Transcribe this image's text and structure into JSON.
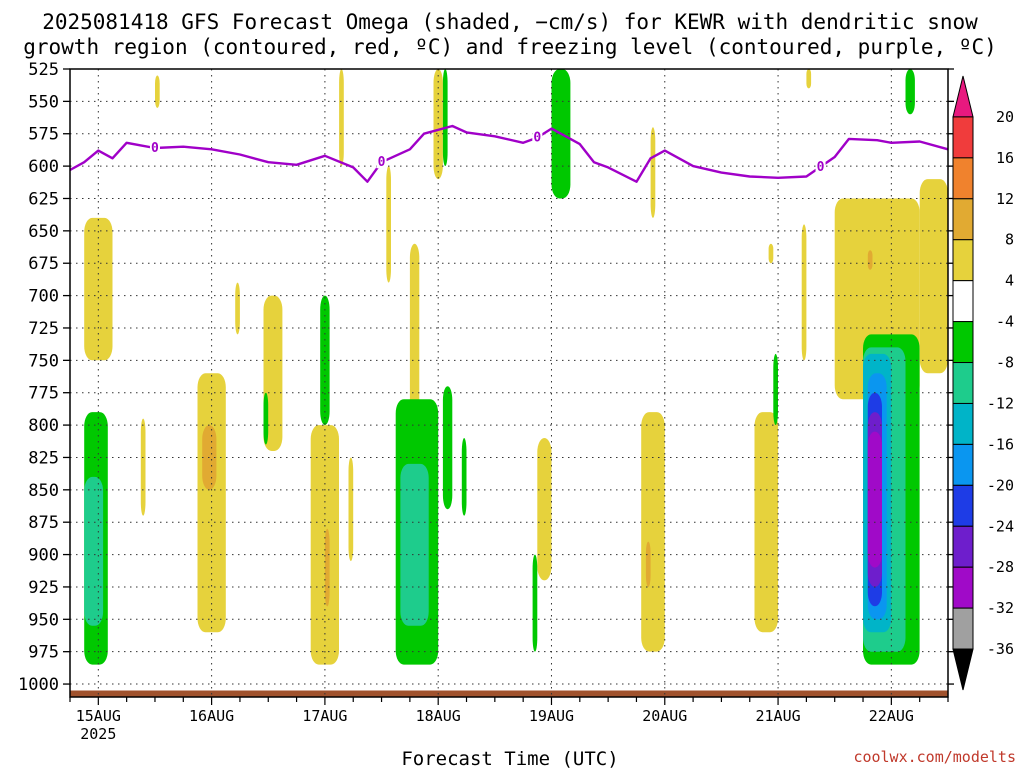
{
  "chart_data": {
    "type": "heatmap",
    "title_line1": "2025081418 GFS Forecast Omega (shaded, −cm/s) for KEWR with dendritic snow",
    "title_line2": "growth region (contoured, red, ºC) and freezing level (contoured, purple, ºC)",
    "xlabel": "Forecast Time (UTC)",
    "credit": "coolwx.com/modelts",
    "y_axis": {
      "variable": "pressure (hPa)",
      "scale": "inverted",
      "range": [
        525,
        1010
      ],
      "ticks": [
        525,
        550,
        575,
        600,
        625,
        650,
        675,
        700,
        725,
        750,
        775,
        800,
        825,
        850,
        875,
        900,
        925,
        950,
        975,
        1000
      ]
    },
    "x_axis": {
      "range": [
        "2025-08-14T18:00Z",
        "2025-08-22T12:00Z"
      ],
      "ticks": [
        {
          "label": "15AUG",
          "sub": "2025",
          "time": "2025-08-15T00:00Z"
        },
        {
          "label": "16AUG",
          "sub": "",
          "time": "2025-08-16T00:00Z"
        },
        {
          "label": "17AUG",
          "sub": "",
          "time": "2025-08-17T00:00Z"
        },
        {
          "label": "18AUG",
          "sub": "",
          "time": "2025-08-18T00:00Z"
        },
        {
          "label": "19AUG",
          "sub": "",
          "time": "2025-08-19T00:00Z"
        },
        {
          "label": "20AUG",
          "sub": "",
          "time": "2025-08-20T00:00Z"
        },
        {
          "label": "21AUG",
          "sub": "",
          "time": "2025-08-21T00:00Z"
        },
        {
          "label": "22AUG",
          "sub": "",
          "time": "2025-08-22T00:00Z"
        }
      ]
    },
    "grid": "dotted",
    "colorbar": {
      "position": "right",
      "labels": [
        20,
        16,
        12,
        8,
        4,
        -4,
        -8,
        -12,
        -16,
        -20,
        -24,
        -28,
        -32,
        -36
      ],
      "bands": [
        {
          "from": 24,
          "to": 20,
          "color": "#e8197f"
        },
        {
          "from": 20,
          "to": 16,
          "color": "#f03c3c"
        },
        {
          "from": 16,
          "to": 12,
          "color": "#f0822d"
        },
        {
          "from": 12,
          "to": 8,
          "color": "#e1aa32"
        },
        {
          "from": 8,
          "to": 4,
          "color": "#e6d23c"
        },
        {
          "from": 4,
          "to": -4,
          "color": "#ffffff"
        },
        {
          "from": -4,
          "to": -8,
          "color": "#00c800"
        },
        {
          "from": -8,
          "to": -12,
          "color": "#1ecc8c"
        },
        {
          "from": -12,
          "to": -16,
          "color": "#00b4c8"
        },
        {
          "from": -16,
          "to": -20,
          "color": "#0a96f0"
        },
        {
          "from": -20,
          "to": -24,
          "color": "#1e3ce6"
        },
        {
          "from": -24,
          "to": -28,
          "color": "#6e1ecc"
        },
        {
          "from": -28,
          "to": -32,
          "color": "#a00ac8"
        },
        {
          "from": -32,
          "to": -36,
          "color": "#a0a0a0"
        },
        {
          "from": -36,
          "to": -40,
          "color": "#000000"
        }
      ]
    },
    "freezing_level": {
      "color": "#a000c8",
      "contour_label": "0",
      "label_times": [
        "2025-08-15T12:00Z",
        "2025-08-17T12:00Z",
        "2025-08-18T21:00Z",
        "2025-08-21T09:00Z"
      ],
      "points": [
        [
          "2025-08-14T18:00Z",
          603
        ],
        [
          "2025-08-14T21:00Z",
          597
        ],
        [
          "2025-08-15T00:00Z",
          588
        ],
        [
          "2025-08-15T03:00Z",
          594
        ],
        [
          "2025-08-15T06:00Z",
          582
        ],
        [
          "2025-08-15T09:00Z",
          584
        ],
        [
          "2025-08-15T12:00Z",
          586
        ],
        [
          "2025-08-15T18:00Z",
          585
        ],
        [
          "2025-08-16T00:00Z",
          587
        ],
        [
          "2025-08-16T06:00Z",
          591
        ],
        [
          "2025-08-16T12:00Z",
          597
        ],
        [
          "2025-08-16T18:00Z",
          599
        ],
        [
          "2025-08-17T00:00Z",
          592
        ],
        [
          "2025-08-17T06:00Z",
          601
        ],
        [
          "2025-08-17T09:00Z",
          612
        ],
        [
          "2025-08-17T12:00Z",
          597
        ],
        [
          "2025-08-17T18:00Z",
          587
        ],
        [
          "2025-08-17T21:00Z",
          575
        ],
        [
          "2025-08-18T03:00Z",
          569
        ],
        [
          "2025-08-18T06:00Z",
          574
        ],
        [
          "2025-08-18T12:00Z",
          577
        ],
        [
          "2025-08-18T18:00Z",
          582
        ],
        [
          "2025-08-18T21:00Z",
          578
        ],
        [
          "2025-08-19T00:00Z",
          571
        ],
        [
          "2025-08-19T06:00Z",
          583
        ],
        [
          "2025-08-19T09:00Z",
          597
        ],
        [
          "2025-08-19T12:00Z",
          601
        ],
        [
          "2025-08-19T18:00Z",
          612
        ],
        [
          "2025-08-19T21:00Z",
          594
        ],
        [
          "2025-08-20T00:00Z",
          588
        ],
        [
          "2025-08-20T06:00Z",
          600
        ],
        [
          "2025-08-20T12:00Z",
          605
        ],
        [
          "2025-08-20T18:00Z",
          608
        ],
        [
          "2025-08-21T00:00Z",
          609
        ],
        [
          "2025-08-21T06:00Z",
          608
        ],
        [
          "2025-08-21T12:00Z",
          593
        ],
        [
          "2025-08-21T15:00Z",
          579
        ],
        [
          "2025-08-21T21:00Z",
          580
        ],
        [
          "2025-08-22T00:00Z",
          582
        ],
        [
          "2025-08-22T06:00Z",
          581
        ],
        [
          "2025-08-22T12:00Z",
          587
        ]
      ]
    },
    "dendritic_growth_region": "none shown",
    "terrain": {
      "color": "#a0522d"
    },
    "omega_regions": [
      {
        "t0": "2025-08-14T21:00Z",
        "t1": "2025-08-15T03:00Z",
        "p0": 640,
        "p1": 750,
        "value": 6
      },
      {
        "t0": "2025-08-14T21:00Z",
        "t1": "2025-08-15T02:00Z",
        "p0": 790,
        "p1": 985,
        "value": -6
      },
      {
        "t0": "2025-08-14T21:00Z",
        "t1": "2025-08-15T01:00Z",
        "p0": 840,
        "p1": 955,
        "value": -10
      },
      {
        "t0": "2025-08-15T09:00Z",
        "t1": "2025-08-15T10:00Z",
        "p0": 795,
        "p1": 870,
        "value": 6
      },
      {
        "t0": "2025-08-15T12:00Z",
        "t1": "2025-08-15T13:00Z",
        "p0": 530,
        "p1": 555,
        "value": 6
      },
      {
        "t0": "2025-08-15T21:00Z",
        "t1": "2025-08-16T03:00Z",
        "p0": 760,
        "p1": 960,
        "value": 6
      },
      {
        "t0": "2025-08-15T22:00Z",
        "t1": "2025-08-16T01:00Z",
        "p0": 800,
        "p1": 850,
        "value": 10
      },
      {
        "t0": "2025-08-16T05:00Z",
        "t1": "2025-08-16T06:00Z",
        "p0": 690,
        "p1": 730,
        "value": 6
      },
      {
        "t0": "2025-08-16T11:00Z",
        "t1": "2025-08-16T15:00Z",
        "p0": 700,
        "p1": 820,
        "value": 6
      },
      {
        "t0": "2025-08-16T11:00Z",
        "t1": "2025-08-16T12:00Z",
        "p0": 775,
        "p1": 815,
        "value": -6
      },
      {
        "t0": "2025-08-16T21:00Z",
        "t1": "2025-08-17T03:00Z",
        "p0": 800,
        "p1": 985,
        "value": 6
      },
      {
        "t0": "2025-08-16T23:00Z",
        "t1": "2025-08-17T01:00Z",
        "p0": 700,
        "p1": 800,
        "value": -6
      },
      {
        "t0": "2025-08-17T00:00Z",
        "t1": "2025-08-17T01:00Z",
        "p0": 880,
        "p1": 940,
        "value": 10
      },
      {
        "t0": "2025-08-17T03:00Z",
        "t1": "2025-08-17T04:00Z",
        "p0": 525,
        "p1": 600,
        "value": 6
      },
      {
        "t0": "2025-08-17T05:00Z",
        "t1": "2025-08-17T06:00Z",
        "p0": 825,
        "p1": 905,
        "value": 6
      },
      {
        "t0": "2025-08-17T13:00Z",
        "t1": "2025-08-17T14:00Z",
        "p0": 600,
        "p1": 690,
        "value": 6
      },
      {
        "t0": "2025-08-17T18:00Z",
        "t1": "2025-08-17T20:00Z",
        "p0": 660,
        "p1": 830,
        "value": 6
      },
      {
        "t0": "2025-08-17T15:00Z",
        "t1": "2025-08-18T00:00Z",
        "p0": 780,
        "p1": 985,
        "value": -6
      },
      {
        "t0": "2025-08-17T16:00Z",
        "t1": "2025-08-17T22:00Z",
        "p0": 830,
        "p1": 955,
        "value": -10
      },
      {
        "t0": "2025-08-17T23:00Z",
        "t1": "2025-08-18T01:00Z",
        "p0": 525,
        "p1": 610,
        "value": 6
      },
      {
        "t0": "2025-08-18T01:00Z",
        "t1": "2025-08-18T02:00Z",
        "p0": 525,
        "p1": 600,
        "value": -6
      },
      {
        "t0": "2025-08-18T01:00Z",
        "t1": "2025-08-18T03:00Z",
        "p0": 770,
        "p1": 865,
        "value": -6
      },
      {
        "t0": "2025-08-18T05:00Z",
        "t1": "2025-08-18T06:00Z",
        "p0": 810,
        "p1": 870,
        "value": -6
      },
      {
        "t0": "2025-08-18T21:00Z",
        "t1": "2025-08-19T00:00Z",
        "p0": 810,
        "p1": 920,
        "value": 6
      },
      {
        "t0": "2025-08-18T20:00Z",
        "t1": "2025-08-18T21:00Z",
        "p0": 900,
        "p1": 975,
        "value": -6
      },
      {
        "t0": "2025-08-19T00:00Z",
        "t1": "2025-08-19T04:00Z",
        "p0": 525,
        "p1": 625,
        "value": -6
      },
      {
        "t0": "2025-08-19T19:00Z",
        "t1": "2025-08-20T00:00Z",
        "p0": 790,
        "p1": 975,
        "value": 6
      },
      {
        "t0": "2025-08-19T20:00Z",
        "t1": "2025-08-19T21:00Z",
        "p0": 890,
        "p1": 925,
        "value": 10
      },
      {
        "t0": "2025-08-19T21:00Z",
        "t1": "2025-08-19T22:00Z",
        "p0": 570,
        "p1": 640,
        "value": 6
      },
      {
        "t0": "2025-08-20T19:00Z",
        "t1": "2025-08-21T00:00Z",
        "p0": 790,
        "p1": 960,
        "value": 6
      },
      {
        "t0": "2025-08-20T23:00Z",
        "t1": "2025-08-21T00:00Z",
        "p0": 745,
        "p1": 800,
        "value": -6
      },
      {
        "t0": "2025-08-20T22:00Z",
        "t1": "2025-08-20T23:00Z",
        "p0": 660,
        "p1": 675,
        "value": 6
      },
      {
        "t0": "2025-08-21T05:00Z",
        "t1": "2025-08-21T06:00Z",
        "p0": 645,
        "p1": 750,
        "value": 6
      },
      {
        "t0": "2025-08-21T06:00Z",
        "t1": "2025-08-21T07:00Z",
        "p0": 525,
        "p1": 540,
        "value": 6
      },
      {
        "t0": "2025-08-21T12:00Z",
        "t1": "2025-08-22T06:00Z",
        "p0": 625,
        "p1": 780,
        "value": 6
      },
      {
        "t0": "2025-08-21T19:00Z",
        "t1": "2025-08-21T20:00Z",
        "p0": 665,
        "p1": 680,
        "value": 10
      },
      {
        "t0": "2025-08-21T18:00Z",
        "t1": "2025-08-22T06:00Z",
        "p0": 730,
        "p1": 985,
        "value": -6
      },
      {
        "t0": "2025-08-21T18:00Z",
        "t1": "2025-08-22T03:00Z",
        "p0": 740,
        "p1": 975,
        "value": -10
      },
      {
        "t0": "2025-08-21T18:00Z",
        "t1": "2025-08-22T00:00Z",
        "p0": 745,
        "p1": 960,
        "value": -14
      },
      {
        "t0": "2025-08-21T19:00Z",
        "t1": "2025-08-21T23:00Z",
        "p0": 760,
        "p1": 950,
        "value": -18
      },
      {
        "t0": "2025-08-21T19:00Z",
        "t1": "2025-08-21T22:00Z",
        "p0": 775,
        "p1": 940,
        "value": -22
      },
      {
        "t0": "2025-08-21T19:00Z",
        "t1": "2025-08-21T22:00Z",
        "p0": 790,
        "p1": 925,
        "value": -26
      },
      {
        "t0": "2025-08-21T19:00Z",
        "t1": "2025-08-21T22:00Z",
        "p0": 805,
        "p1": 910,
        "value": -30
      },
      {
        "t0": "2025-08-22T06:00Z",
        "t1": "2025-08-22T12:00Z",
        "p0": 610,
        "p1": 760,
        "value": 6
      },
      {
        "t0": "2025-08-22T03:00Z",
        "t1": "2025-08-22T05:00Z",
        "p0": 525,
        "p1": 560,
        "value": -6
      }
    ]
  }
}
